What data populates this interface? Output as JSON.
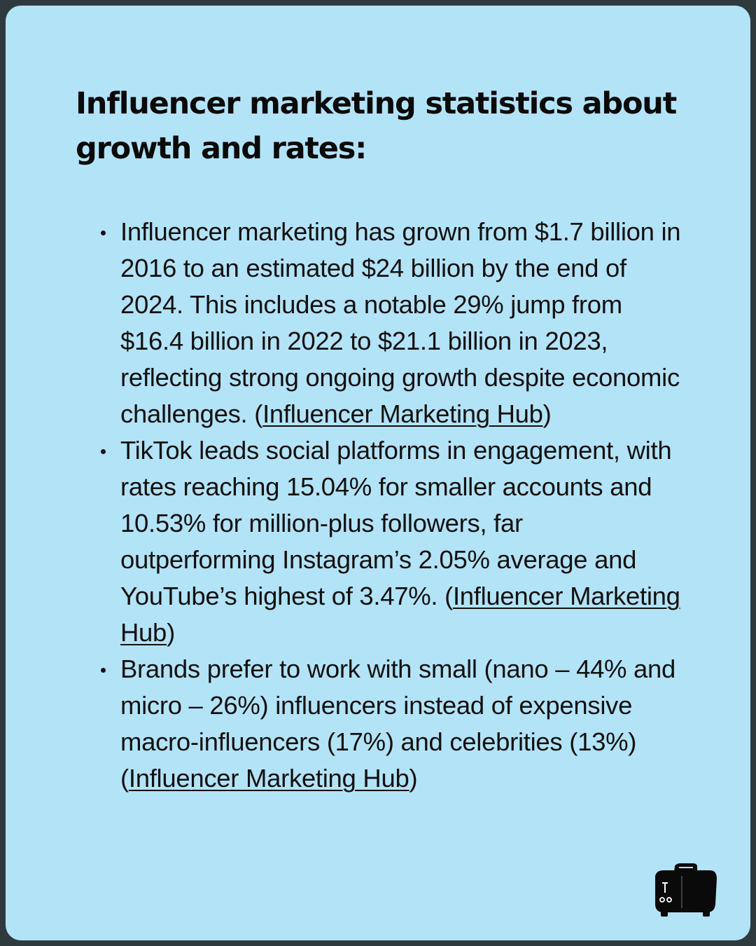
{
  "heading": "Influencer marketing statistics about growth and rates:",
  "stats": [
    {
      "text": "Influencer marketing has grown from $1.7 billion in 2016 to an estimated $24 billion by the end of 2024. This includes a notable 29% jump from $16.4 billion in 2022 to $21.1 billion in 2023, reflecting strong ongoing growth despite economic challenges. (",
      "link": "Influencer Marketing Hub",
      "close": ")"
    },
    {
      "text": "TikTok leads social platforms in engagement, with rates reaching 15.04% for smaller accounts and 10.53% for million-plus followers, far outperforming Instagram’s 2.05% average and YouTube’s highest of 3.47%. (",
      "link": "Influencer Marketing Hub",
      "close": ")"
    },
    {
      "text": "Brands prefer to work with small (nano – 44% and micro – 26%) influencers instead of expensive macro-influencers (17%) and celebrities (13%) (",
      "link": "Influencer Marketing Hub",
      "close": ")"
    }
  ],
  "colors": {
    "frame": "#2f3a3e",
    "background": "#b3e3f6",
    "text": "#111111"
  },
  "icons": {
    "logo": "toaster-icon"
  }
}
